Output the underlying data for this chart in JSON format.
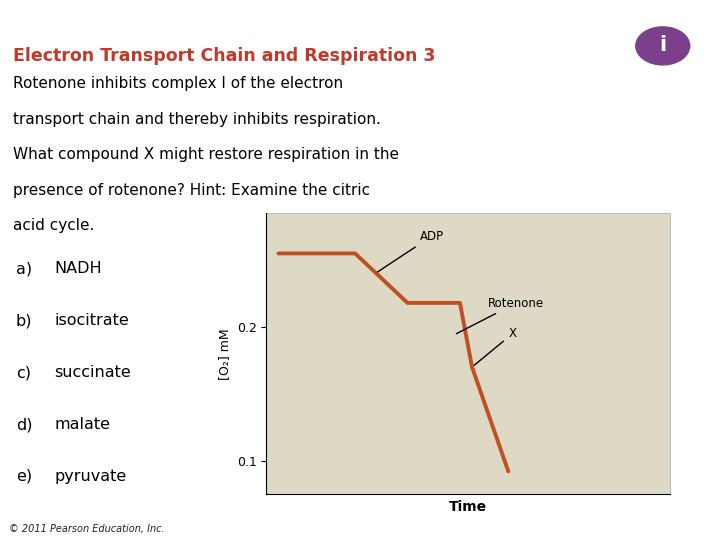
{
  "title": "Electron Transport Chain and Respiration 3",
  "title_color": "#C0392B",
  "body_text_lines": [
    "Rotenone inhibits complex I of the electron",
    "transport chain and thereby inhibits respiration.",
    "What compound X might restore respiration in the",
    "presence of rotenone? Hint: Examine the citric",
    "acid cycle."
  ],
  "body_color": "#000000",
  "choices": [
    [
      "a)",
      "NADH"
    ],
    [
      "b)",
      "isocitrate"
    ],
    [
      "c)",
      "succinate"
    ],
    [
      "d)",
      "malate"
    ],
    [
      "e)",
      "pyruvate"
    ]
  ],
  "choices_color": "#000000",
  "bg_color": "#FFFFFF",
  "header_bar_color": "#2E5C9E",
  "footer_bar_color": "#C8A84B",
  "footer_text": "© 2011 Pearson Education, Inc.",
  "graph_bg_color": "#DDD9C4",
  "line_color": "#C05020",
  "line_width": 2.8,
  "ylabel": "[O₂] mM",
  "xlabel": "Time",
  "yticks": [
    0.1,
    0.2
  ],
  "ylim": [
    0.075,
    0.285
  ],
  "xlim": [
    0,
    10
  ],
  "icon_color": "#7B3F8C"
}
